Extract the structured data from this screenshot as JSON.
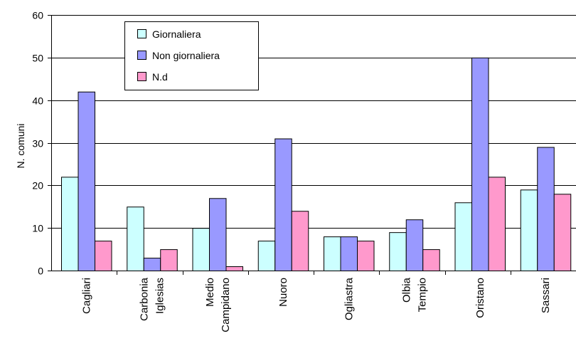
{
  "chart_data": {
    "type": "bar",
    "title": "",
    "xlabel": "",
    "ylabel": "N. comuni",
    "ylim": [
      0,
      60
    ],
    "yticks": [
      0,
      10,
      20,
      30,
      40,
      50,
      60
    ],
    "grid": true,
    "legend_position": "top-left",
    "categories": [
      [
        "Cagliari"
      ],
      [
        "Carbonia",
        "Iglesias"
      ],
      [
        "Medio",
        "Campidano"
      ],
      [
        "Nuoro"
      ],
      [
        "Ogliastra"
      ],
      [
        "Olbia",
        "Tempio"
      ],
      [
        "Oristano"
      ],
      [
        "Sassari"
      ]
    ],
    "series": [
      {
        "name": "Giornaliera",
        "color": "#ccffff",
        "values": [
          22,
          15,
          10,
          7,
          8,
          9,
          16,
          19
        ]
      },
      {
        "name": "Non giornaliera",
        "color": "#9999ff",
        "values": [
          42,
          3,
          17,
          31,
          8,
          12,
          50,
          29
        ]
      },
      {
        "name": "N.d",
        "color": "#ff99cc",
        "values": [
          7,
          5,
          1,
          14,
          7,
          5,
          22,
          18
        ]
      }
    ]
  }
}
